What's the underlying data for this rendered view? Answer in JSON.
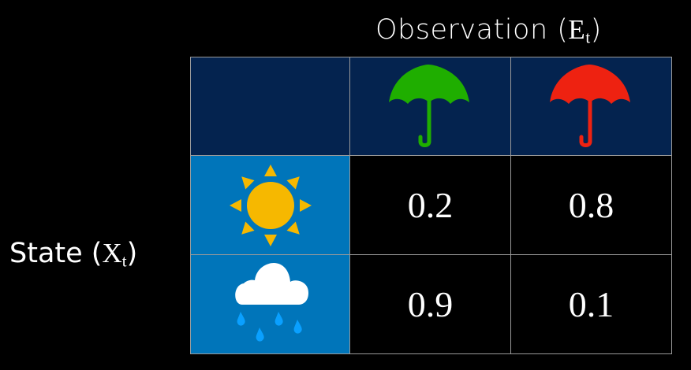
{
  "header": {
    "title_text": "Observation (",
    "title_var": "E",
    "title_sub": "t",
    "title_close": ")"
  },
  "side": {
    "label_text": "State (",
    "label_var": "X",
    "label_sub": "t",
    "label_close": ")"
  },
  "columns": [
    {
      "icon": "umbrella-icon",
      "color": "#1fae00"
    },
    {
      "icon": "umbrella-icon",
      "color": "#ee2211"
    }
  ],
  "rows": [
    {
      "icon": "sun-icon",
      "values": [
        "0.2",
        "0.8"
      ]
    },
    {
      "icon": "rain-cloud-icon",
      "values": [
        "0.9",
        "0.1"
      ]
    }
  ],
  "colors": {
    "header_bg": "#04234f",
    "state_bg": "#0075ba",
    "sun": "#f6b800",
    "rain_drop": "#0aa0ff"
  }
}
